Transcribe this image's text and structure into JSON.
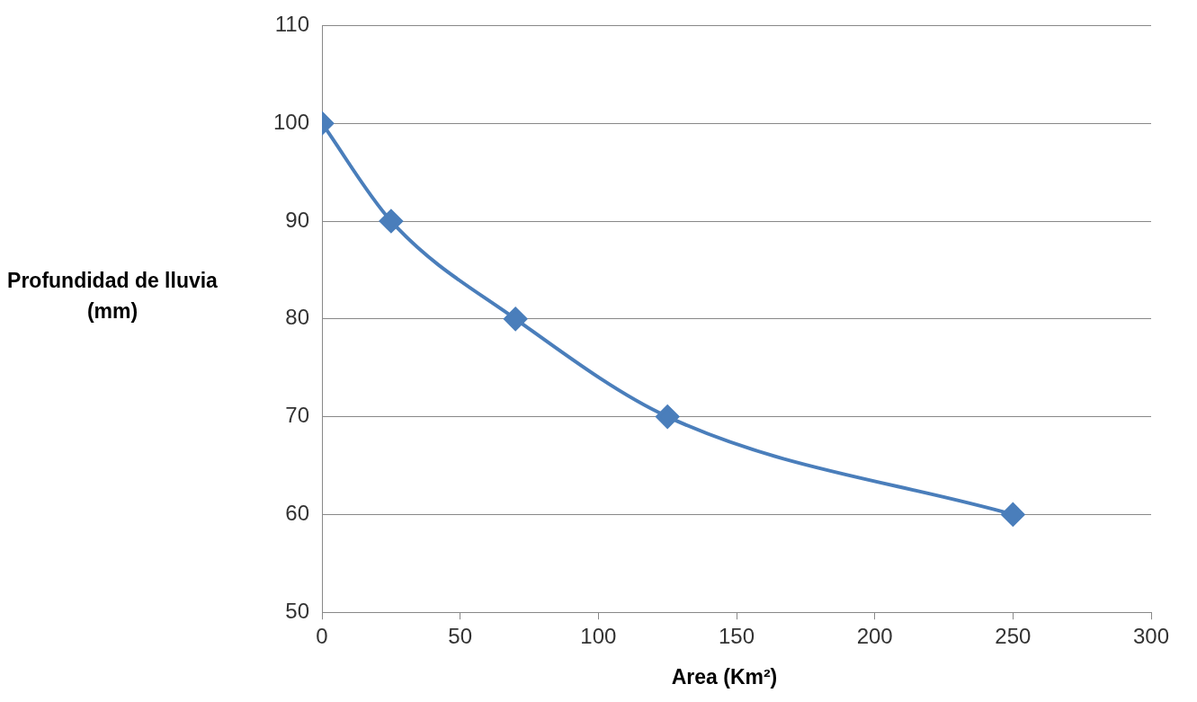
{
  "chart_data": {
    "type": "line",
    "xlabel": "Area (Km²)",
    "ylabel": "Profundidad de lluvia (mm)",
    "x": [
      0,
      25,
      70,
      125,
      250
    ],
    "series": [
      {
        "color": "#4a7ebb",
        "values": [
          100,
          90,
          80,
          70,
          60
        ]
      }
    ],
    "xlim": [
      0,
      300
    ],
    "xticks": [
      0,
      50,
      100,
      150,
      200,
      250,
      300
    ],
    "ylim": [
      50,
      110
    ],
    "yticks": [
      50,
      60,
      70,
      80,
      90,
      100,
      110
    ],
    "grid": "y",
    "legend": false,
    "marker": "diamond",
    "line_style": "solid"
  }
}
